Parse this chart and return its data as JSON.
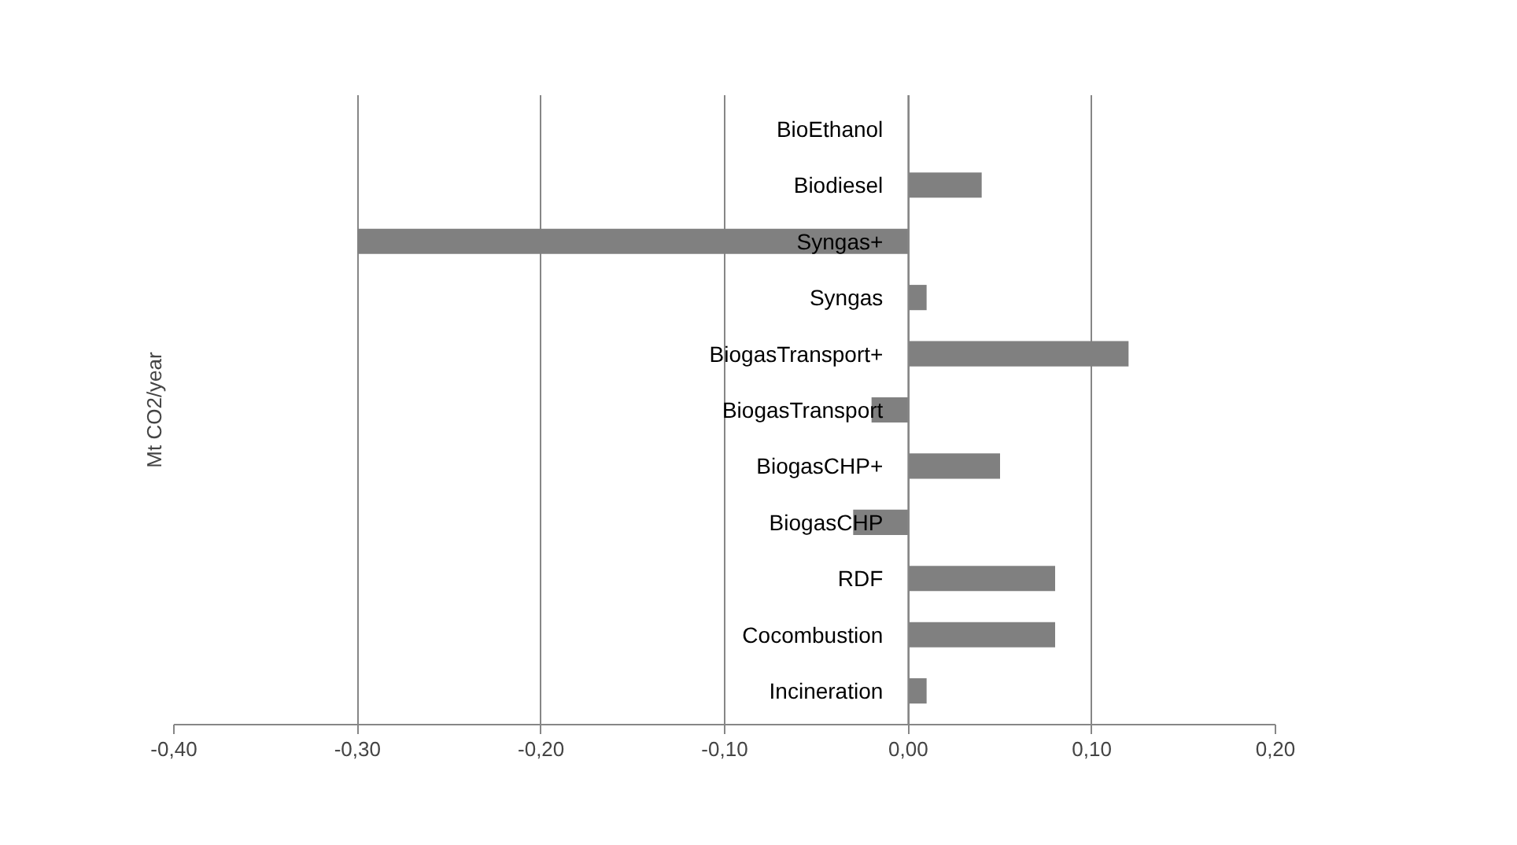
{
  "chart_data": {
    "type": "bar",
    "orientation": "horizontal",
    "ylabel": "Mt CO2/year",
    "categories": [
      "BioEthanol",
      "Biodiesel",
      "Syngas+",
      "Syngas",
      "BiogasTransport+",
      "BiogasTransport",
      "BiogasCHP+",
      "BiogasCHP",
      "RDF",
      "Cocombustion",
      "Incineration"
    ],
    "values": [
      0,
      0.04,
      -0.3,
      0.01,
      0.12,
      -0.02,
      0.05,
      -0.03,
      0.08,
      0.08,
      0.01
    ],
    "color": "#808080",
    "xlim": [
      -0.4,
      0.2
    ],
    "xticks": [
      {
        "value": -0.4,
        "label": "-0,40"
      },
      {
        "value": -0.3,
        "label": "-0,30"
      },
      {
        "value": -0.2,
        "label": "-0,20"
      },
      {
        "value": -0.1,
        "label": "-0,10"
      },
      {
        "value": 0,
        "label": "0,00"
      },
      {
        "value": 0.1,
        "label": "0,10"
      },
      {
        "value": 0.2,
        "label": "0,20"
      }
    ],
    "grid": "x"
  }
}
